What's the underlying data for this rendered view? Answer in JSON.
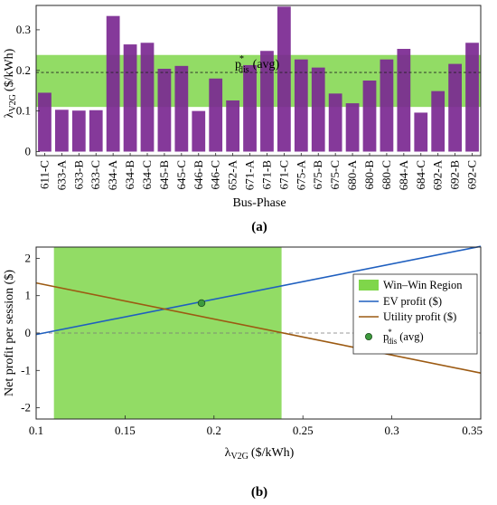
{
  "chart_data": [
    {
      "type": "bar",
      "panel_label": "(a)",
      "xlabel": "Bus-Phase",
      "ylabel_main": "λ",
      "ylabel_sub": "V2G",
      "ylabel_unit": "($/kWh)",
      "ylim": [
        -0.01,
        0.36
      ],
      "yticks": [
        "0",
        "0.1",
        "0.2",
        "0.3"
      ],
      "ytick_values": [
        0,
        0.1,
        0.2,
        0.3
      ],
      "categories": [
        "611-C",
        "633-A",
        "633-B",
        "633-C",
        "634-A",
        "634-B",
        "634-C",
        "645-B",
        "645-C",
        "646-B",
        "646-C",
        "652-A",
        "671-A",
        "671-B",
        "671-C",
        "675-A",
        "675-B",
        "675-C",
        "680-A",
        "680-B",
        "680-C",
        "684-A",
        "684-C",
        "692-A",
        "692-B",
        "692-C"
      ],
      "values": [
        0.145,
        0.103,
        0.101,
        0.102,
        0.334,
        0.264,
        0.268,
        0.204,
        0.211,
        0.1,
        0.18,
        0.126,
        0.213,
        0.248,
        0.357,
        0.227,
        0.207,
        0.143,
        0.119,
        0.175,
        0.227,
        0.253,
        0.096,
        0.149,
        0.216,
        0.268
      ],
      "band": [
        0.11,
        0.238
      ],
      "avg_line": 0.195,
      "avg_label_main": "p",
      "avg_label_sup": "*",
      "avg_label_sub": "dis",
      "avg_label_suffix": "(avg)",
      "bar_color": "#7b2891",
      "band_color": "#7fd64a"
    },
    {
      "type": "line",
      "panel_label": "(b)",
      "xlabel_main": "λ",
      "xlabel_sub": "V2G",
      "xlabel_unit": "($/kWh)",
      "ylabel": "Net profit per session ($)",
      "xlim": [
        0.1,
        0.35
      ],
      "ylim": [
        -2.3,
        2.3
      ],
      "xticks": [
        "0.1",
        "0.15",
        "0.2",
        "0.25",
        "0.3",
        "0.35"
      ],
      "xtick_values": [
        0.1,
        0.15,
        0.2,
        0.25,
        0.3,
        0.35
      ],
      "yticks": [
        "-2",
        "-1",
        "0",
        "1",
        "2"
      ],
      "ytick_values": [
        -2,
        -1,
        0,
        1,
        2
      ],
      "band": [
        0.11,
        0.238
      ],
      "series": [
        {
          "name": "EV profit ($)",
          "x": [
            0.1,
            0.35
          ],
          "y": [
            -0.04,
            2.32
          ],
          "color": "#1f5fbf"
        },
        {
          "name": "Utility profit ($)",
          "x": [
            0.1,
            0.35
          ],
          "y": [
            1.34,
            -1.07
          ],
          "color": "#9c5a12"
        }
      ],
      "point": {
        "x": 0.193,
        "y": 0.8,
        "color": "#3e9a3e"
      },
      "legend": {
        "position": "right",
        "region_label": "Win–Win Region",
        "point_label_main": "p",
        "point_label_sup": "*",
        "point_label_sub": "dis",
        "point_label_suffix": "(avg)"
      }
    }
  ]
}
